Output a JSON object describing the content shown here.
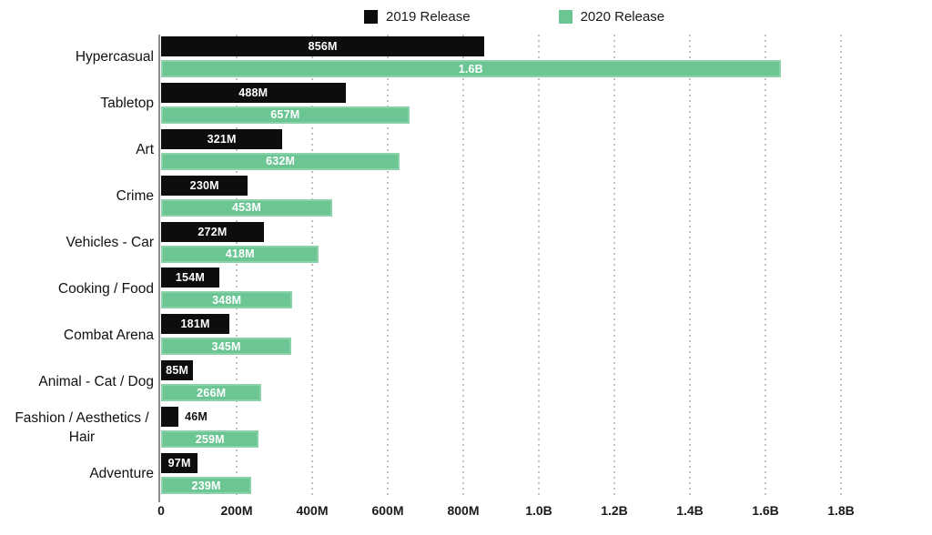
{
  "legend": {
    "items": [
      {
        "label": "2019 Release",
        "color": "#0d0d0d"
      },
      {
        "label": "2020 Release",
        "color": "#6BC694"
      }
    ]
  },
  "chart_data": {
    "type": "bar",
    "orientation": "horizontal",
    "title": "",
    "xlabel": "",
    "ylabel": "",
    "grid": "vertical-dotted",
    "legend_position": "top",
    "categories": [
      "Hypercasual",
      "Tabletop",
      "Art",
      "Crime",
      "Vehicles - Car",
      "Cooking / Food",
      "Combat Arena",
      "Animal - Cat / Dog",
      "Fashion / Aesthetics / Hair",
      "Adventure"
    ],
    "series": [
      {
        "name": "2019 Release",
        "color": "#0d0d0d",
        "values_m": [
          856,
          488,
          321,
          230,
          272,
          154,
          181,
          85,
          46,
          97
        ],
        "labels": [
          "856M",
          "488M",
          "321M",
          "230M",
          "272M",
          "154M",
          "181M",
          "85M",
          "46M",
          "97M"
        ]
      },
      {
        "name": "2020 Release",
        "color": "#6BC694",
        "values_m": [
          1640,
          657,
          632,
          453,
          418,
          348,
          345,
          266,
          259,
          239
        ],
        "labels": [
          "1.6B",
          "657M",
          "632M",
          "453M",
          "418M",
          "348M",
          "345M",
          "266M",
          "259M",
          "239M"
        ]
      }
    ],
    "x_axis": {
      "max_m": 1800,
      "ticks": [
        {
          "label": "0",
          "m": 0
        },
        {
          "label": "200M",
          "m": 200
        },
        {
          "label": "400M",
          "m": 400
        },
        {
          "label": "600M",
          "m": 600
        },
        {
          "label": "800M",
          "m": 800
        },
        {
          "label": "1.0B",
          "m": 1000
        },
        {
          "label": "1.2B",
          "m": 1200
        },
        {
          "label": "1.4B",
          "m": 1400
        },
        {
          "label": "1.6B",
          "m": 1600
        },
        {
          "label": "1.8B",
          "m": 1800
        }
      ]
    }
  }
}
